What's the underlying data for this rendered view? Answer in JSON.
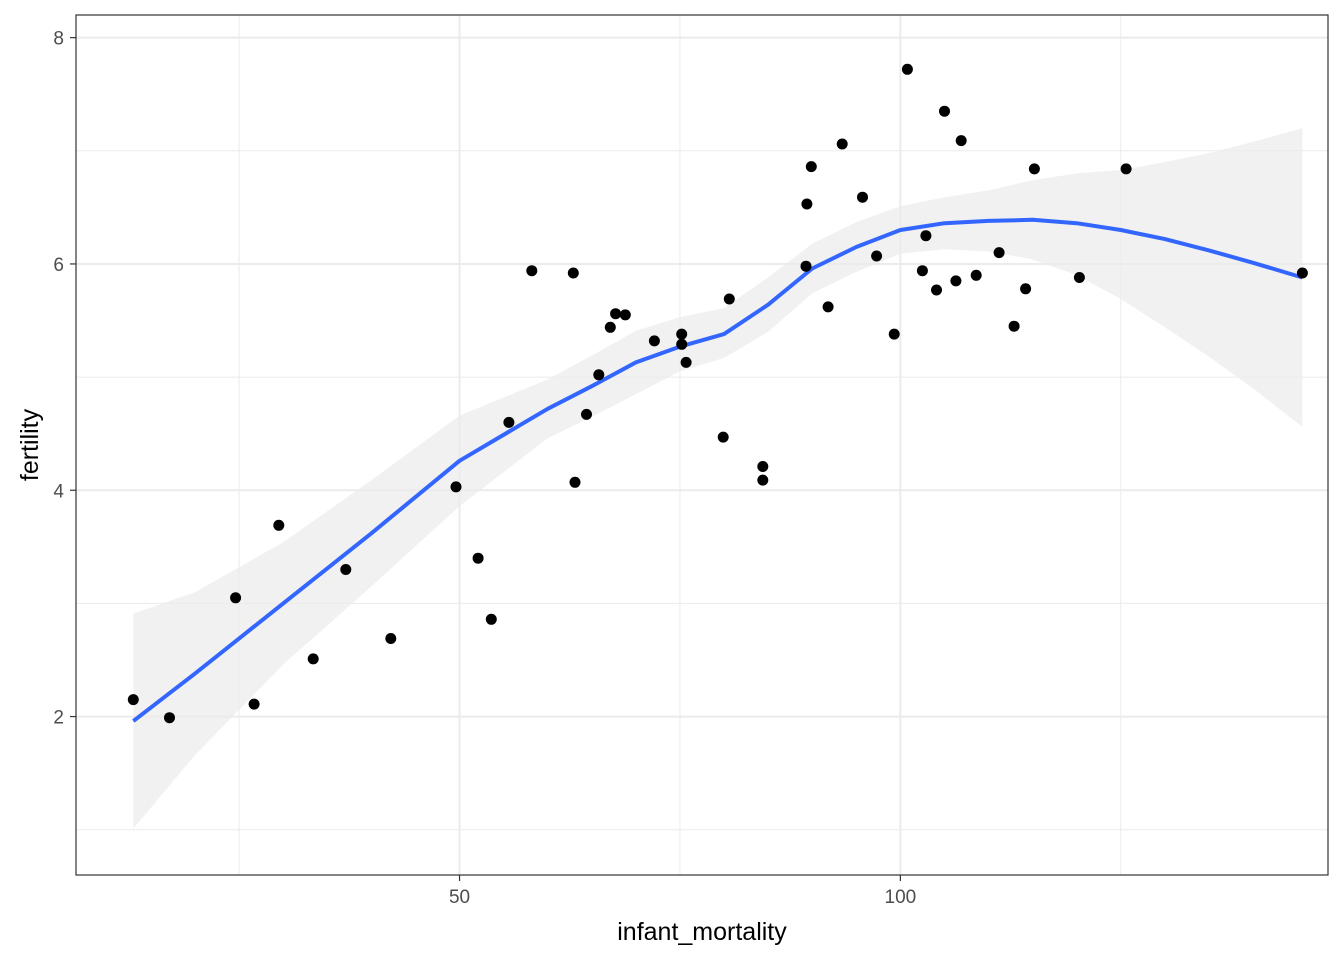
{
  "chart_data": {
    "type": "scatter",
    "title": "",
    "xlabel": "infant_mortality",
    "ylabel": "fertility",
    "xlim": [
      6.5,
      148.5
    ],
    "ylim": [
      0.6,
      8.2
    ],
    "x_ticks": [
      50,
      100
    ],
    "x_ticks_labeled": [
      "50",
      "100"
    ],
    "x_minor_ticks": [
      25,
      75,
      125
    ],
    "y_ticks": [
      2,
      4,
      6,
      8
    ],
    "y_ticks_labeled": [
      "2",
      "4",
      "6",
      "8"
    ],
    "y_minor_ticks": [
      1,
      3,
      5,
      7
    ],
    "grid": true,
    "theme": "bw",
    "points": {
      "x": [
        13.0,
        17.1,
        24.6,
        26.7,
        29.5,
        33.4,
        37.1,
        42.2,
        49.6,
        52.1,
        53.6,
        55.6,
        58.2,
        62.9,
        63.1,
        64.4,
        65.8,
        67.1,
        67.7,
        68.8,
        72.1,
        75.2,
        75.2,
        75.7,
        79.9,
        80.6,
        84.4,
        84.4,
        89.3,
        89.4,
        89.9,
        91.8,
        93.4,
        95.7,
        97.3,
        99.3,
        100.8,
        102.5,
        102.9,
        104.1,
        105.0,
        106.3,
        106.9,
        108.6,
        111.2,
        112.9,
        114.2,
        115.2,
        120.3,
        125.6,
        145.6
      ],
      "y": [
        2.15,
        1.99,
        3.05,
        2.11,
        3.69,
        2.51,
        3.3,
        2.69,
        4.03,
        3.4,
        2.86,
        4.6,
        5.94,
        5.92,
        4.07,
        4.67,
        5.02,
        5.44,
        5.56,
        5.55,
        5.32,
        5.38,
        5.29,
        5.13,
        4.47,
        5.69,
        4.21,
        4.09,
        5.98,
        6.53,
        6.86,
        5.62,
        7.06,
        6.59,
        6.07,
        5.38,
        7.72,
        5.94,
        6.25,
        5.77,
        7.35,
        5.85,
        7.09,
        5.9,
        6.1,
        5.45,
        5.78,
        6.84,
        5.88,
        6.84,
        5.92
      ]
    },
    "smooth": {
      "method": "loess",
      "color": "#3366ff",
      "band_color": "#ebebeb",
      "x": [
        13,
        20,
        30,
        40,
        50,
        60,
        65,
        70,
        75,
        80,
        85,
        90,
        95,
        100,
        105,
        110,
        115,
        120,
        125,
        130,
        135,
        140,
        145.6
      ],
      "y": [
        1.96,
        2.38,
        3.0,
        3.62,
        4.26,
        4.72,
        4.92,
        5.13,
        5.27,
        5.38,
        5.64,
        5.96,
        6.15,
        6.3,
        6.36,
        6.38,
        6.39,
        6.36,
        6.3,
        6.22,
        6.12,
        6.01,
        5.88
      ],
      "lower": [
        1.01,
        1.66,
        2.46,
        3.15,
        3.86,
        4.46,
        4.65,
        4.85,
        5.05,
        5.17,
        5.4,
        5.74,
        5.93,
        6.09,
        6.13,
        6.11,
        6.04,
        5.9,
        5.69,
        5.44,
        5.18,
        4.9,
        4.56
      ],
      "upper": [
        2.91,
        3.1,
        3.54,
        4.09,
        4.66,
        4.98,
        5.19,
        5.41,
        5.53,
        5.61,
        5.88,
        6.18,
        6.37,
        6.51,
        6.59,
        6.65,
        6.74,
        6.8,
        6.83,
        6.9,
        6.98,
        7.08,
        7.2
      ]
    }
  }
}
